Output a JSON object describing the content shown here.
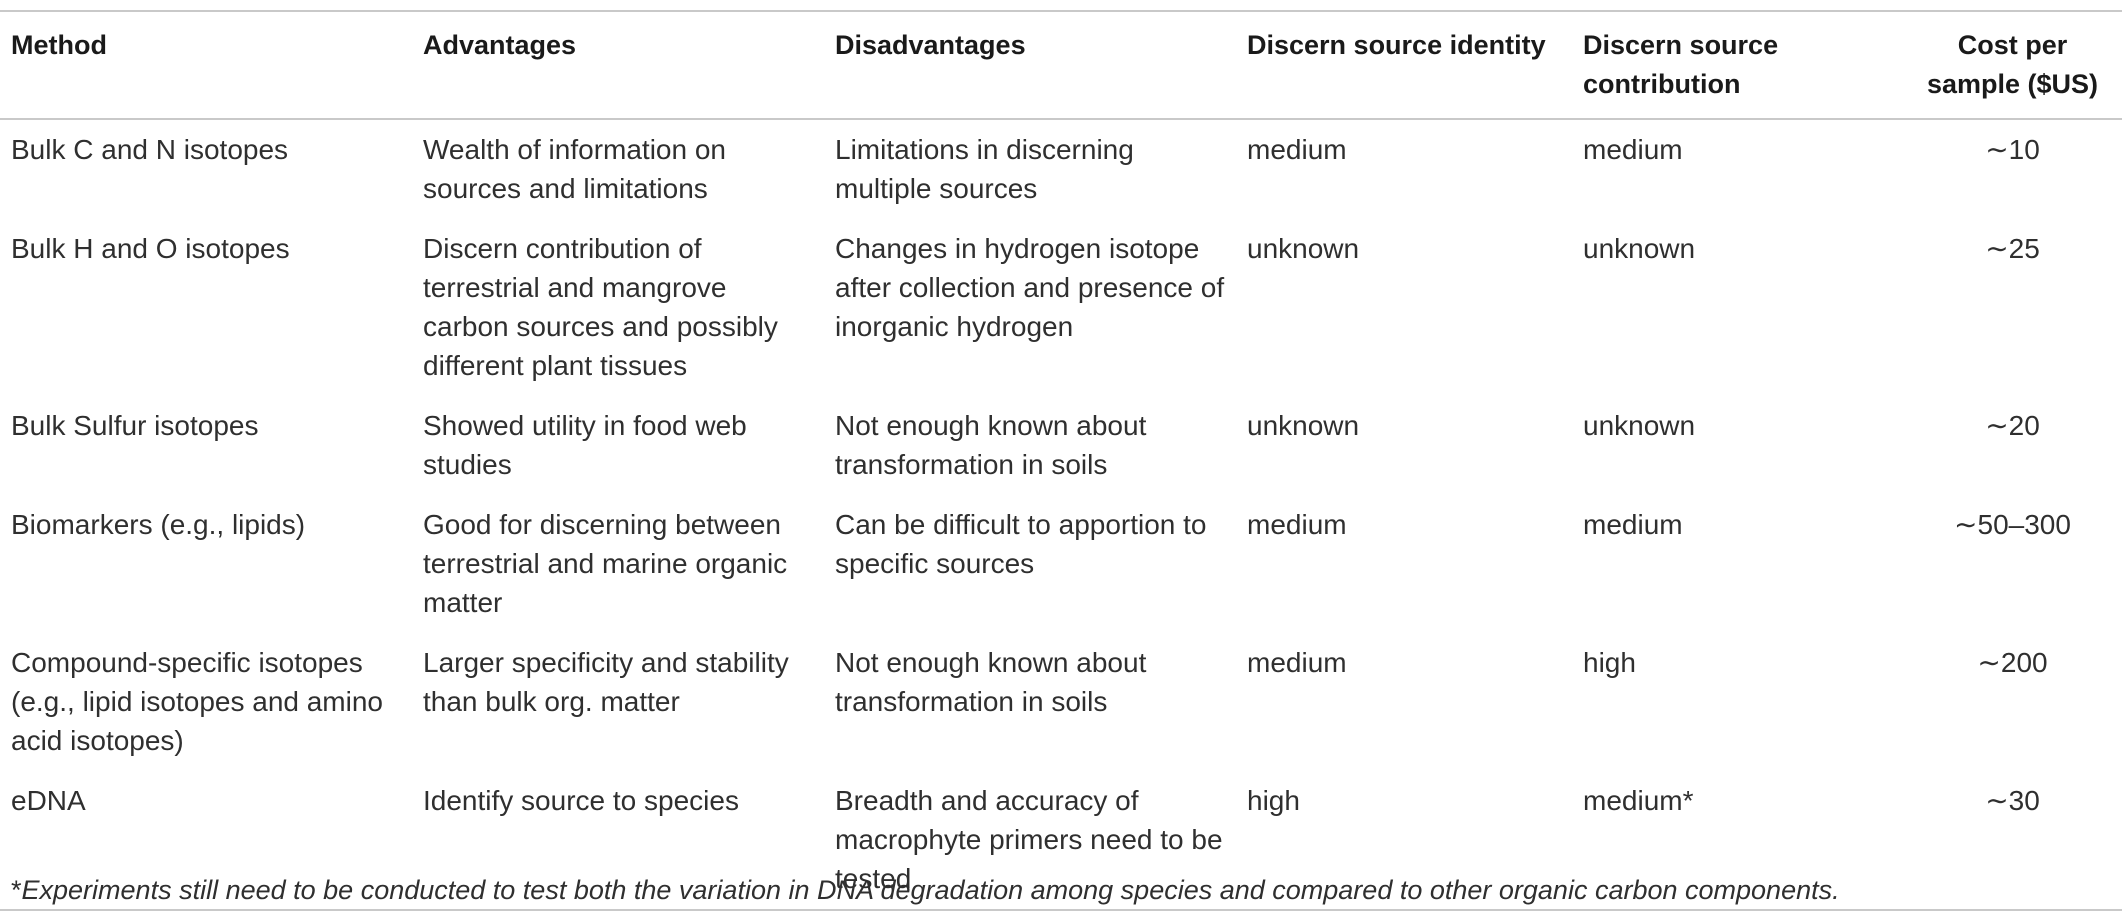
{
  "table": {
    "headers": [
      "Method",
      "Advantages",
      "Disadvantages",
      "Discern source identity",
      "Discern source contribution",
      "Cost per sample ($US)"
    ],
    "rows": [
      {
        "method": "Bulk C and N isotopes",
        "advantages": "Wealth of information on sources and limitations",
        "disadvantages": "Limitations in discerning multiple sources",
        "identity": "medium",
        "contribution": "medium",
        "cost": "∼10"
      },
      {
        "method": "Bulk H and O isotopes",
        "advantages": "Discern contribution of terrestrial and mangrove carbon sources and possibly different plant tissues",
        "disadvantages": "Changes in hydrogen isotope after collection and presence of inorganic hydrogen",
        "identity": "unknown",
        "contribution": "unknown",
        "cost": "∼25"
      },
      {
        "method": "Bulk Sulfur isotopes",
        "advantages": "Showed utility in food web studies",
        "disadvantages": "Not enough known about transformation in soils",
        "identity": "unknown",
        "contribution": "unknown",
        "cost": "∼20"
      },
      {
        "method": "Biomarkers (e.g., lipids)",
        "advantages": "Good for discerning between terrestrial and marine organic matter",
        "disadvantages": "Can be difficult to apportion to specific sources",
        "identity": "medium",
        "contribution": "medium",
        "cost": "∼50–300"
      },
      {
        "method": "Compound-specific isotopes (e.g., lipid isotopes and amino acid isotopes)",
        "advantages": "Larger specificity and stability than bulk org. matter",
        "disadvantages": "Not enough known about transformation in soils",
        "identity": "medium",
        "contribution": "high",
        "cost": "∼200"
      },
      {
        "method": "eDNA",
        "advantages": "Identify source to species",
        "disadvantages": "Breadth and accuracy of macrophyte primers need to be tested",
        "identity": "high",
        "contribution": "medium*",
        "cost": "∼30"
      }
    ]
  },
  "footnote": {
    "mark": "*",
    "text": "Experiments still need to be conducted to test both the variation in DNA degradation among species and compared to other organic carbon components."
  }
}
